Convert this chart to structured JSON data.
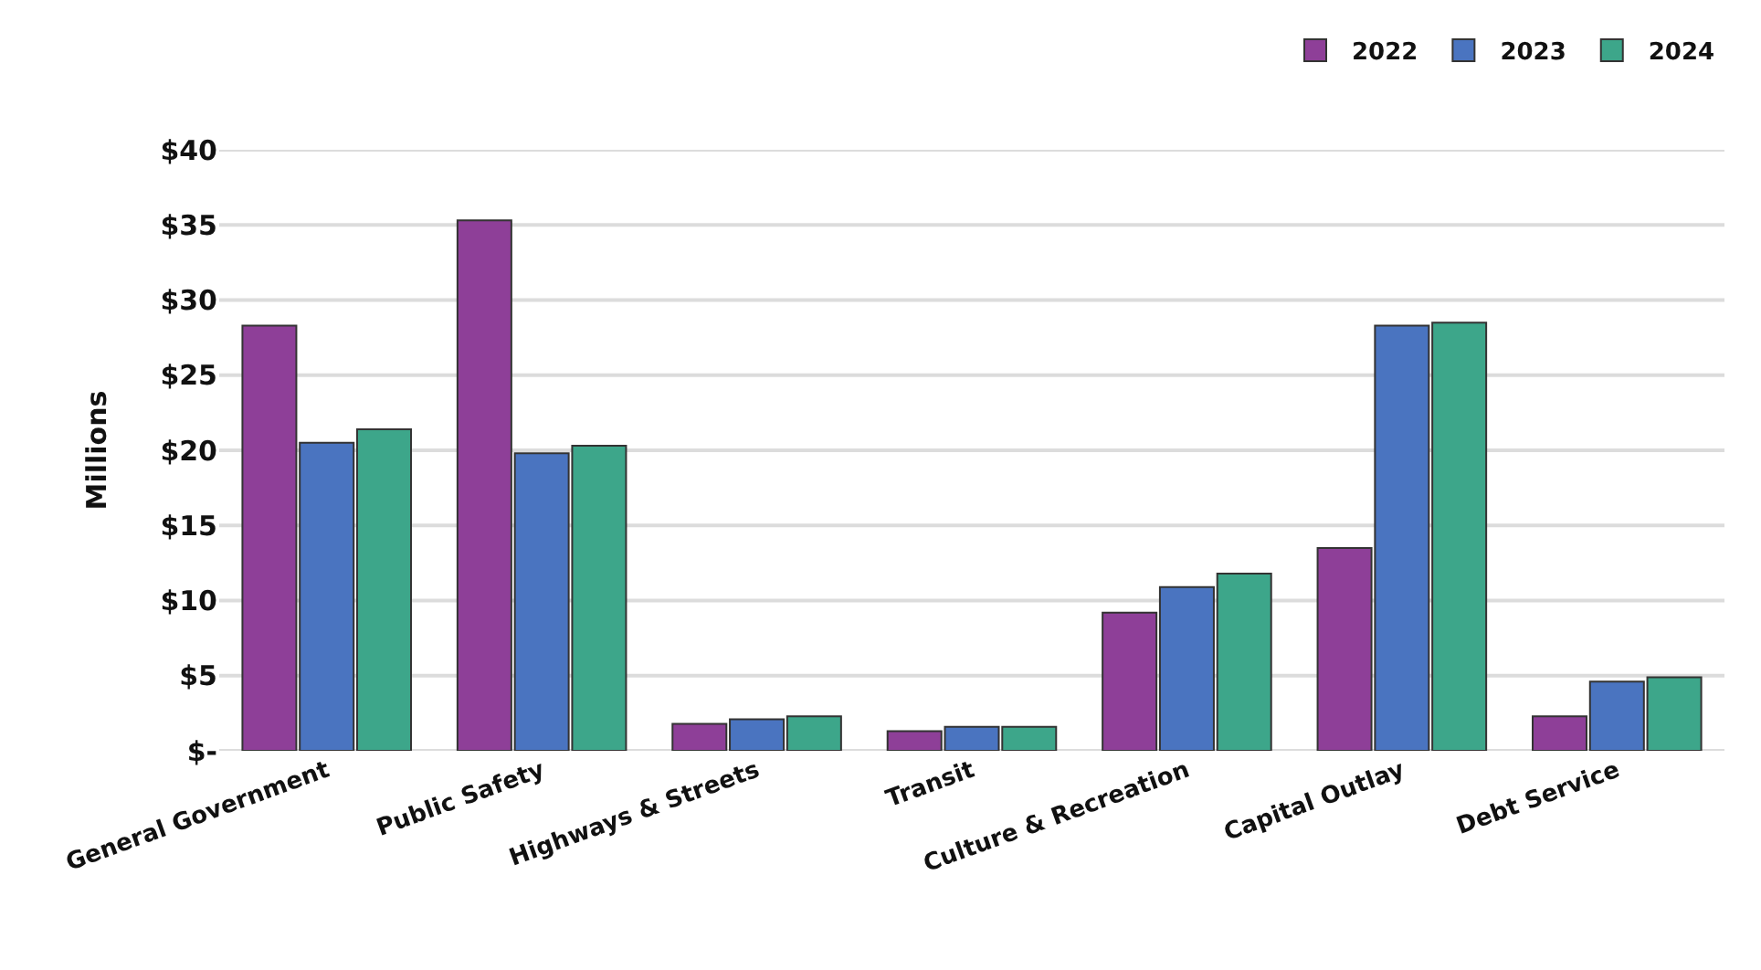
{
  "chart_data": {
    "type": "bar",
    "ylabel": "Millions",
    "categories": [
      "General Government",
      "Public Safety",
      "Highways & Streets",
      "Transit",
      "Culture & Recreation",
      "Capital Outlay",
      "Debt Service"
    ],
    "series": [
      {
        "name": "2022",
        "color": "#8e3f98",
        "values": [
          28.3,
          35.3,
          1.8,
          1.3,
          9.2,
          13.5,
          2.3
        ]
      },
      {
        "name": "2023",
        "color": "#4a74c0",
        "values": [
          20.5,
          19.8,
          2.1,
          1.6,
          10.9,
          28.3,
          4.6
        ]
      },
      {
        "name": "2024",
        "color": "#3da68a",
        "values": [
          21.4,
          20.3,
          2.3,
          1.6,
          11.8,
          28.5,
          4.9
        ]
      }
    ],
    "ylim": [
      0,
      40
    ],
    "yticks": [
      {
        "value": 0,
        "label": "$-"
      },
      {
        "value": 5,
        "label": "$5"
      },
      {
        "value": 10,
        "label": "$10"
      },
      {
        "value": 15,
        "label": "$15"
      },
      {
        "value": 20,
        "label": "$20"
      },
      {
        "value": 25,
        "label": "$25"
      },
      {
        "value": 30,
        "label": "$30"
      },
      {
        "value": 35,
        "label": "$35"
      },
      {
        "value": 40,
        "label": "$40"
      }
    ],
    "grid": "y",
    "legend": "top right"
  }
}
